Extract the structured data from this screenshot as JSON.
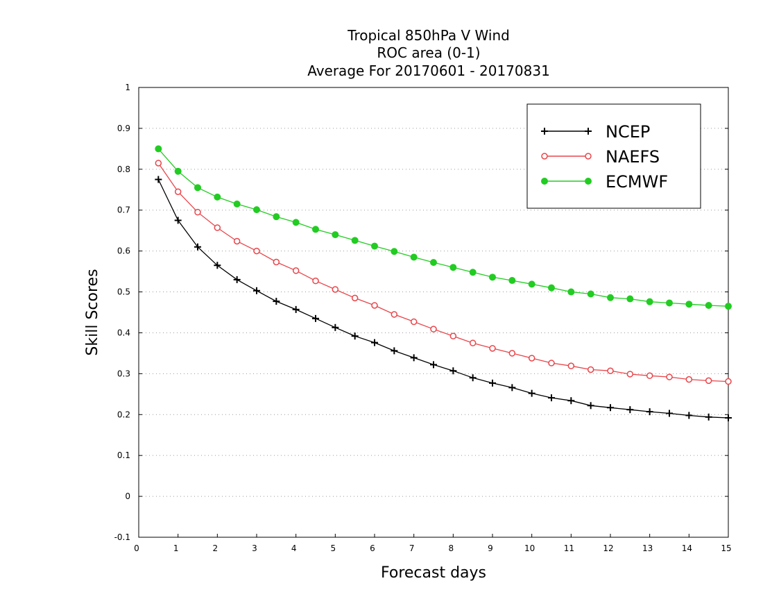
{
  "chart_data": {
    "type": "line",
    "title_lines": [
      "Tropical 850hPa V Wind",
      "ROC area (0-1)",
      "Average For 20170601 - 20170831"
    ],
    "xlabel": "Forecast days",
    "ylabel": "Skill Scores",
    "xlim": [
      0,
      15
    ],
    "ylim": [
      -0.1,
      1
    ],
    "xticks": [
      0,
      1,
      2,
      3,
      4,
      5,
      6,
      7,
      8,
      9,
      10,
      11,
      12,
      13,
      14,
      15
    ],
    "xtick_labels": [
      "0",
      "1",
      "2",
      "3",
      "4",
      "5",
      "6",
      "7",
      "8",
      "9",
      "10",
      "11",
      "12",
      "13",
      "14",
      "15"
    ],
    "yticks": [
      -0.1,
      0,
      0.1,
      0.2,
      0.3,
      0.4,
      0.5,
      0.6,
      0.7,
      0.8,
      0.9,
      1
    ],
    "ytick_labels": [
      "-0.1",
      "0",
      "0.1",
      "0.2",
      "0.3",
      "0.4",
      "0.5",
      "0.6",
      "0.7",
      "0.8",
      "0.9",
      "1"
    ],
    "grid": "horizontal dotted",
    "legend_position": "top-right",
    "x": [
      0.5,
      1,
      1.5,
      2,
      2.5,
      3,
      3.5,
      4,
      4.5,
      5,
      5.5,
      6,
      6.5,
      7,
      7.5,
      8,
      8.5,
      9,
      9.5,
      10,
      10.5,
      11,
      11.5,
      12,
      12.5,
      13,
      13.5,
      14,
      14.5,
      15
    ],
    "series": [
      {
        "name": "NCEP",
        "color": "#000000",
        "marker": "plus",
        "values": [
          0.775,
          0.675,
          0.61,
          0.565,
          0.53,
          0.503,
          0.477,
          0.457,
          0.435,
          0.413,
          0.392,
          0.376,
          0.356,
          0.339,
          0.322,
          0.307,
          0.29,
          0.277,
          0.266,
          0.252,
          0.241,
          0.234,
          0.222,
          0.217,
          0.212,
          0.207,
          0.203,
          0.198,
          0.194,
          0.192
        ]
      },
      {
        "name": "NAEFS",
        "color": "#e8454a",
        "marker": "open-circle",
        "values": [
          0.815,
          0.745,
          0.695,
          0.657,
          0.624,
          0.6,
          0.573,
          0.552,
          0.527,
          0.506,
          0.485,
          0.467,
          0.445,
          0.427,
          0.409,
          0.392,
          0.375,
          0.362,
          0.35,
          0.338,
          0.326,
          0.319,
          0.31,
          0.307,
          0.299,
          0.295,
          0.292,
          0.286,
          0.283,
          0.281
        ]
      },
      {
        "name": "ECMWF",
        "color": "#22cc22",
        "marker": "filled-circle",
        "values": [
          0.85,
          0.795,
          0.755,
          0.732,
          0.715,
          0.701,
          0.684,
          0.67,
          0.653,
          0.64,
          0.626,
          0.612,
          0.599,
          0.585,
          0.572,
          0.56,
          0.548,
          0.536,
          0.528,
          0.519,
          0.51,
          0.5,
          0.495,
          0.486,
          0.483,
          0.476,
          0.473,
          0.47,
          0.467,
          0.465
        ]
      }
    ]
  }
}
